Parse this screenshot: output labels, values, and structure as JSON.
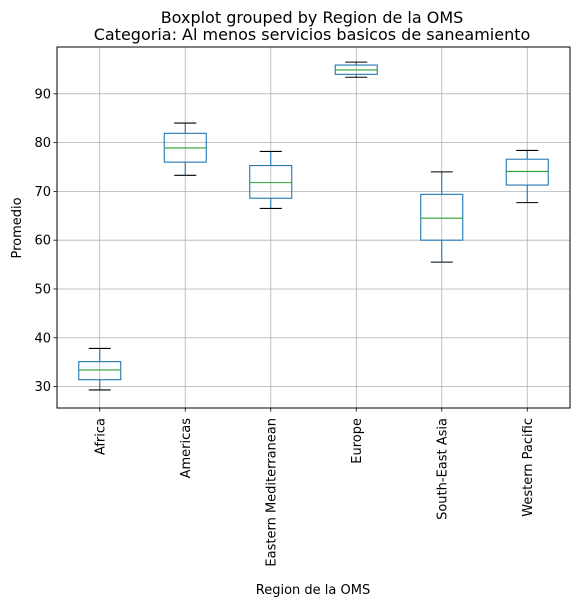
{
  "chart_data": {
    "type": "boxplot",
    "suptitle": "Boxplot grouped by Region de la OMS",
    "title": "Categoria: Al menos servicios basicos de saneamiento",
    "xlabel": "Region de la OMS",
    "ylabel": "Promedio",
    "ylim": [
      25.6,
      99.6
    ],
    "yticks": [
      30,
      40,
      50,
      60,
      70,
      80,
      90
    ],
    "grid": true,
    "box_color": "#1f77b4",
    "median_color": "#2ca02c",
    "whisker_cap_color": "#000000",
    "categories": [
      "Africa",
      "Americas",
      "Eastern Mediterranean",
      "Europe",
      "South-East Asia",
      "Western Pacific"
    ],
    "boxes": [
      {
        "category": "Africa",
        "whisker_low": 29.3,
        "q1": 31.4,
        "median": 33.4,
        "q3": 35.1,
        "whisker_high": 37.8
      },
      {
        "category": "Americas",
        "whisker_low": 73.3,
        "q1": 76.0,
        "median": 78.9,
        "q3": 81.9,
        "whisker_high": 84.0
      },
      {
        "category": "Eastern Mediterranean",
        "whisker_low": 66.5,
        "q1": 68.6,
        "median": 71.8,
        "q3": 75.3,
        "whisker_high": 78.2
      },
      {
        "category": "Europe",
        "whisker_low": 93.4,
        "q1": 94.0,
        "median": 94.9,
        "q3": 95.9,
        "whisker_high": 96.5
      },
      {
        "category": "South-East Asia",
        "whisker_low": 55.5,
        "q1": 60.0,
        "median": 64.5,
        "q3": 69.4,
        "whisker_high": 74.0
      },
      {
        "category": "Western Pacific",
        "whisker_low": 67.7,
        "q1": 71.3,
        "median": 74.1,
        "q3": 76.6,
        "whisker_high": 78.4
      }
    ]
  }
}
